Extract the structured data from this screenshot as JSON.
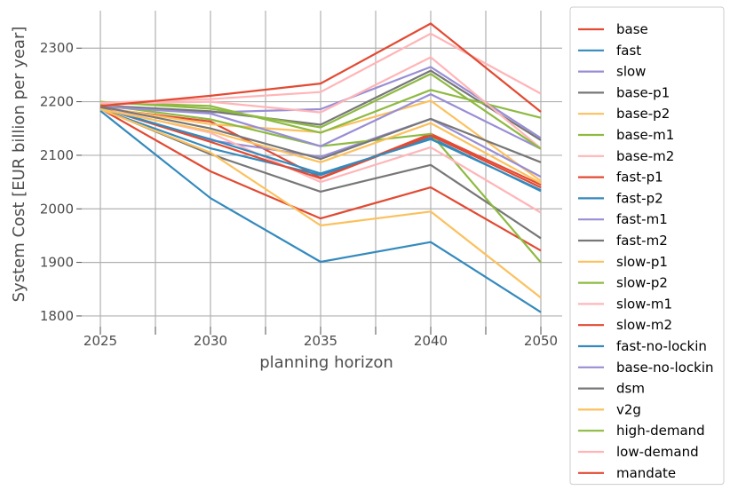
{
  "chart_data": {
    "type": "line",
    "title": "",
    "xlabel": "planning horizon",
    "ylabel": "System Cost [EUR billion per year]",
    "x": [
      2025,
      2030,
      2035,
      2040,
      2050
    ],
    "x_ticks": [
      "2025",
      "2030",
      "2035",
      "2040",
      "2050"
    ],
    "y_ticks": [
      "1800",
      "1900",
      "2000",
      "2100",
      "2200",
      "2300"
    ],
    "ylim": [
      1780,
      2370
    ],
    "grid": true,
    "legend_position": "right-outside",
    "colors": {
      "red": "#E24A33",
      "blue": "#348ABD",
      "purple": "#988ED5",
      "gray": "#777777",
      "yellow": "#FBC15E",
      "green": "#8EBA42",
      "pink": "#FFB5B8"
    },
    "series": [
      {
        "name": "base",
        "color": "#E24A33",
        "values": [
          2188,
          2163,
          2058,
          2140,
          2045
        ]
      },
      {
        "name": "fast",
        "color": "#348ABD",
        "values": [
          2183,
          2020,
          1901,
          1938,
          1807
        ]
      },
      {
        "name": "slow",
        "color": "#988ED5",
        "values": [
          2192,
          2180,
          2186,
          2265,
          2132
        ]
      },
      {
        "name": "base-p1",
        "color": "#777777",
        "values": [
          2193,
          2182,
          2157,
          2258,
          2128
        ]
      },
      {
        "name": "base-p2",
        "color": "#FBC15E",
        "values": [
          2190,
          2158,
          2143,
          2202,
          2052
        ]
      },
      {
        "name": "base-m1",
        "color": "#8EBA42",
        "values": [
          2199,
          2192,
          2142,
          2222,
          2170
        ]
      },
      {
        "name": "base-m2",
        "color": "#FFB5B8",
        "values": [
          2196,
          2200,
          2180,
          2283,
          2113
        ]
      },
      {
        "name": "fast-p1",
        "color": "#E24A33",
        "values": [
          2187,
          2070,
          1982,
          2040,
          1922
        ]
      },
      {
        "name": "fast-p2",
        "color": "#348ABD",
        "values": [
          2186,
          2113,
          2063,
          2133,
          2033
        ]
      },
      {
        "name": "fast-m1",
        "color": "#988ED5",
        "values": [
          2190,
          2128,
          2097,
          2168,
          2060
        ]
      },
      {
        "name": "fast-m2",
        "color": "#777777",
        "values": [
          2187,
          2102,
          2032,
          2082,
          1945
        ]
      },
      {
        "name": "slow-p1",
        "color": "#FBC15E",
        "values": [
          2186,
          2105,
          1969,
          1995,
          1834
        ]
      },
      {
        "name": "slow-p2",
        "color": "#8EBA42",
        "values": [
          2194,
          2167,
          2117,
          2140,
          1900
        ]
      },
      {
        "name": "slow-m1",
        "color": "#FFB5B8",
        "values": [
          2189,
          2142,
          2050,
          2115,
          1993
        ]
      },
      {
        "name": "slow-m2",
        "color": "#E24A33",
        "values": [
          2189,
          2125,
          2057,
          2137,
          2040
        ]
      },
      {
        "name": "fast-no-lockin",
        "color": "#348ABD",
        "values": [
          2188,
          2130,
          2066,
          2130,
          2035
        ]
      },
      {
        "name": "base-no-lockin",
        "color": "#988ED5",
        "values": [
          2191,
          2178,
          2117,
          2214,
          2112
        ]
      },
      {
        "name": "dsm",
        "color": "#777777",
        "values": [
          2191,
          2150,
          2093,
          2168,
          2087
        ]
      },
      {
        "name": "v2g",
        "color": "#FBC15E",
        "values": [
          2186,
          2145,
          2087,
          2160,
          2048
        ]
      },
      {
        "name": "high-demand",
        "color": "#8EBA42",
        "values": [
          2200,
          2187,
          2152,
          2252,
          2112
        ]
      },
      {
        "name": "low-demand",
        "color": "#FFB5B8",
        "values": [
          2198,
          2205,
          2218,
          2327,
          2215
        ]
      },
      {
        "name": "mandate",
        "color": "#E24A33",
        "values": [
          2192,
          2211,
          2234,
          2346,
          2181
        ]
      }
    ]
  }
}
